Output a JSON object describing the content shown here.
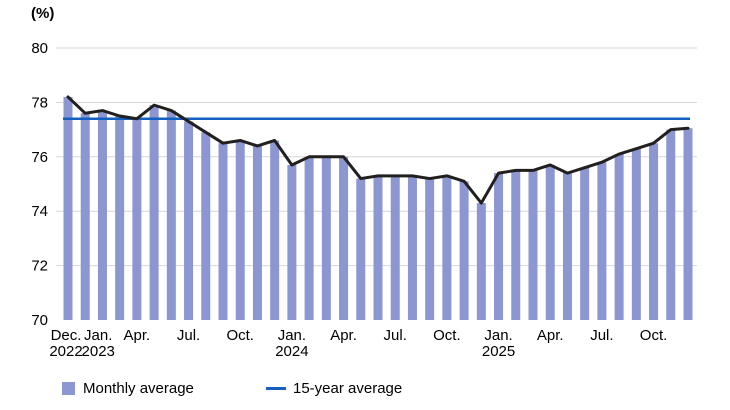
{
  "unit_label": "(%)",
  "legend": {
    "monthly": "Monthly average",
    "fifteen_year": "15-year average"
  },
  "colors": {
    "bar": "#8C96D1",
    "avg_line": "#1660C2",
    "series_line": "#221F1F",
    "gridline": "#D6D6D6",
    "text": "#000000"
  },
  "chart_data": {
    "type": "bar",
    "unit": "(%)",
    "ylim": [
      70,
      80
    ],
    "yticks": [
      70,
      72,
      74,
      76,
      78,
      80
    ],
    "grid": "horizontal",
    "legend_position": "bottom",
    "x": [
      "Dec. 2022",
      "Jan. 2023",
      "Feb. 2023",
      "Mar. 2023",
      "Apr. 2023",
      "May 2023",
      "Jun. 2023",
      "Jul. 2023",
      "Aug. 2023",
      "Sep. 2023",
      "Oct. 2023",
      "Nov. 2023",
      "Dec. 2023",
      "Jan. 2024",
      "Feb. 2024",
      "Mar. 2024",
      "Apr. 2024",
      "May 2024",
      "Jun. 2024",
      "Jul. 2024",
      "Aug. 2024",
      "Sep. 2024",
      "Oct. 2024",
      "Nov. 2024",
      "Dec. 2024",
      "Jan. 2025",
      "Feb. 2025",
      "Mar. 2025",
      "Apr. 2025",
      "May 2025",
      "Jun. 2025",
      "Jul. 2025",
      "Aug. 2025",
      "Sep. 2025",
      "Oct. 2025",
      "Nov. 2025",
      "Dec. 2025"
    ],
    "series": [
      {
        "name": "Monthly average",
        "type": "bar-with-top-line",
        "values": [
          78.2,
          77.6,
          77.7,
          77.5,
          77.4,
          77.9,
          77.7,
          77.3,
          76.9,
          76.5,
          76.6,
          76.4,
          76.6,
          75.7,
          76.0,
          76.0,
          76.0,
          75.2,
          75.3,
          75.3,
          75.3,
          75.2,
          75.3,
          75.1,
          74.3,
          75.4,
          75.5,
          75.5,
          75.7,
          75.4,
          75.6,
          75.8,
          76.1,
          76.3,
          76.5,
          77.0,
          77.05
        ]
      },
      {
        "name": "15-year average",
        "type": "hline",
        "value": 77.4
      }
    ],
    "xticks": [
      {
        "index": 0,
        "label": "Dec.",
        "year": "2022"
      },
      {
        "index": 1,
        "label": "Jan.",
        "year": "2023"
      },
      {
        "index": 4,
        "label": "Apr."
      },
      {
        "index": 7,
        "label": "Jul."
      },
      {
        "index": 10,
        "label": "Oct."
      },
      {
        "index": 13,
        "label": "Jan.",
        "year": "2024"
      },
      {
        "index": 16,
        "label": "Apr."
      },
      {
        "index": 19,
        "label": "Jul."
      },
      {
        "index": 22,
        "label": "Oct."
      },
      {
        "index": 25,
        "label": "Jan.",
        "year": "2025"
      },
      {
        "index": 28,
        "label": "Apr."
      },
      {
        "index": 31,
        "label": "Jul."
      },
      {
        "index": 34,
        "label": "Oct."
      }
    ]
  }
}
